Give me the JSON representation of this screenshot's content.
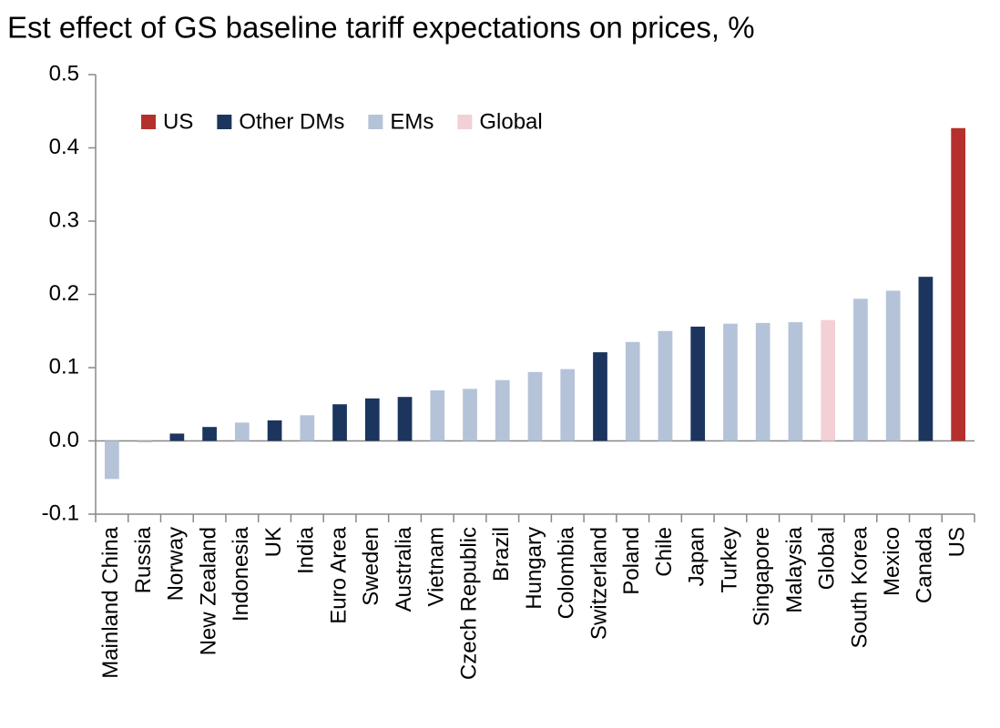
{
  "chart_data": {
    "type": "bar",
    "title": "Est effect of GS baseline tariff expectations on prices, %",
    "categories": [
      "Mainland China",
      "Russia",
      "Norway",
      "New Zealand",
      "Indonesia",
      "UK",
      "India",
      "Euro Area",
      "Sweden",
      "Australia",
      "Vietnam",
      "Czech Republic",
      "Brazil",
      "Hungary",
      "Colombia",
      "Switzerland",
      "Poland",
      "Chile",
      "Japan",
      "Turkey",
      "Singapore",
      "Malaysia",
      "Global",
      "South Korea",
      "Mexico",
      "Canada",
      "US"
    ],
    "series": [
      {
        "name": "US",
        "color": "#b5302c",
        "values": [
          null,
          null,
          null,
          null,
          null,
          null,
          null,
          null,
          null,
          null,
          null,
          null,
          null,
          null,
          null,
          null,
          null,
          null,
          null,
          null,
          null,
          null,
          null,
          null,
          null,
          null,
          0.427
        ]
      },
      {
        "name": "Other DMs",
        "color": "#1b355e",
        "values": [
          null,
          null,
          0.01,
          0.019,
          null,
          0.028,
          null,
          0.05,
          0.058,
          0.06,
          null,
          null,
          null,
          null,
          null,
          0.121,
          null,
          null,
          0.156,
          null,
          null,
          null,
          null,
          null,
          null,
          0.224,
          null
        ]
      },
      {
        "name": "EMs",
        "color": "#b5c3d8",
        "values": [
          -0.052,
          -0.002,
          null,
          null,
          0.025,
          null,
          0.035,
          null,
          null,
          null,
          0.069,
          0.071,
          0.083,
          0.094,
          0.098,
          null,
          0.135,
          0.15,
          null,
          0.16,
          0.161,
          0.162,
          null,
          0.194,
          0.205,
          null,
          null
        ]
      },
      {
        "name": "Global",
        "color": "#f2d0d6",
        "values": [
          null,
          null,
          null,
          null,
          null,
          null,
          null,
          null,
          null,
          null,
          null,
          null,
          null,
          null,
          null,
          null,
          null,
          null,
          null,
          null,
          null,
          null,
          0.165,
          null,
          null,
          null,
          null
        ]
      }
    ],
    "ylim": [
      -0.1,
      0.5
    ],
    "yticks": [
      -0.1,
      {
        "value": 0,
        "label": "0.0"
      },
      0.1,
      0.2,
      0.3,
      0.4,
      0.5
    ]
  }
}
